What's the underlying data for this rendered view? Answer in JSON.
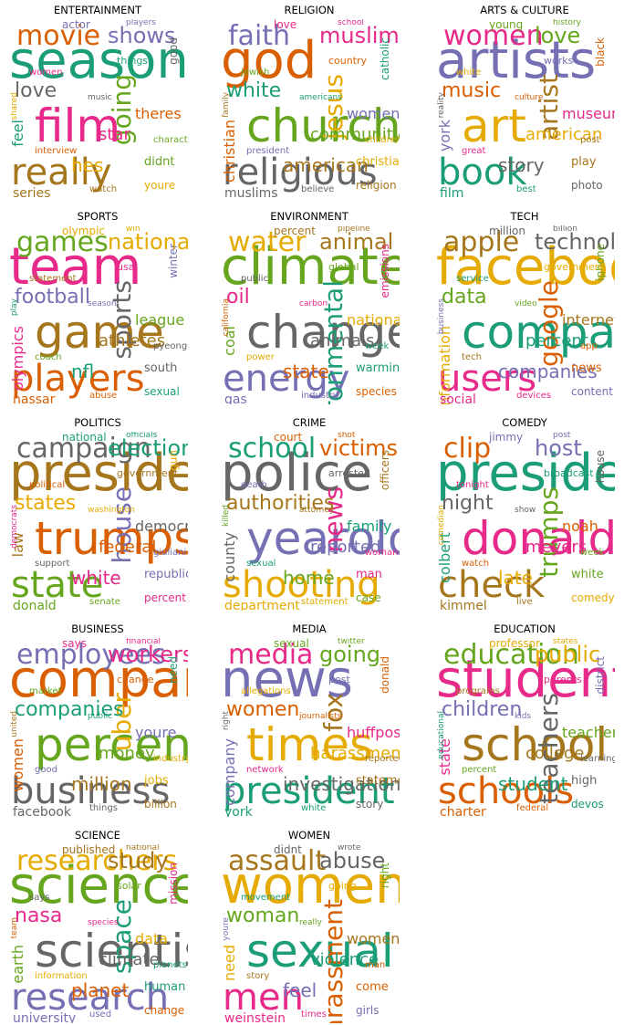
{
  "palette": [
    "#1b9e77",
    "#d95f02",
    "#7570b3",
    "#e7298a",
    "#66a61e",
    "#e6ab02",
    "#a6761d",
    "#666666"
  ],
  "panels": [
    {
      "title": "ENTERTAINMENT",
      "words": [
        "season",
        "film",
        "really",
        "movie",
        "going",
        "love",
        "shows",
        "hes",
        "feel",
        "star",
        "series",
        "theres",
        "didnt",
        "good",
        "actor",
        "youre",
        "things",
        "women",
        "watch",
        "interview",
        "character",
        "music",
        "players",
        "shared"
      ]
    },
    {
      "title": "RELIGION",
      "words": [
        "god",
        "church",
        "religious",
        "faith",
        "jesus",
        "white",
        "muslim",
        "american",
        "christian",
        "community",
        "muslims",
        "women",
        "christians",
        "catholic",
        "love",
        "religion",
        "country",
        "jewish",
        "believe",
        "president",
        "children",
        "americans",
        "school",
        "family"
      ]
    },
    {
      "title": "ARTS & CULTURE",
      "words": [
        "artists",
        "art",
        "book",
        "women",
        "artist",
        "music",
        "love",
        "story",
        "york",
        "american",
        "film",
        "museum",
        "play",
        "black",
        "young",
        "photo",
        "works",
        "white",
        "best",
        "great",
        "post",
        "culture",
        "history",
        "reality"
      ]
    },
    {
      "title": "SPORTS",
      "words": [
        "team",
        "game",
        "players",
        "games",
        "sports",
        "football",
        "national",
        "nfl",
        "olympics",
        "athletes",
        "nassar",
        "league",
        "south",
        "winter",
        "olympic",
        "sexual",
        "usa",
        "statement",
        "abuse",
        "coach",
        "pyeongchang",
        "season",
        "win",
        "play"
      ]
    },
    {
      "title": "ENVIRONMENT",
      "words": [
        "climate",
        "change",
        "energy",
        "water",
        "environmental",
        "oil",
        "animal",
        "state",
        "coal",
        "animals",
        "gas",
        "national",
        "warming",
        "emissions",
        "percent",
        "species",
        "global",
        "public",
        "industry",
        "power",
        "week",
        "carbon",
        "pipeline",
        "california"
      ]
    },
    {
      "title": "TECH",
      "words": [
        "facebook",
        "company",
        "users",
        "apple",
        "google",
        "data",
        "technology",
        "companies",
        "information",
        "percent",
        "social",
        "internet",
        "news",
        "iphone",
        "million",
        "content",
        "government",
        "service",
        "devices",
        "tech",
        "app",
        "video",
        "billion",
        "business"
      ]
    },
    {
      "title": "POLITICS",
      "words": [
        "president",
        "trumps",
        "state",
        "campaign",
        "house",
        "states",
        "election",
        "white",
        "law",
        "federal",
        "donald",
        "democratic",
        "republican",
        "gun",
        "national",
        "percent",
        "government",
        "political",
        "senate",
        "support",
        "giuliani",
        "washington",
        "officials",
        "democrats"
      ]
    },
    {
      "title": "CRIME",
      "words": [
        "police",
        "yearold",
        "shooting",
        "school",
        "news",
        "authorities",
        "victims",
        "home",
        "county",
        "reported",
        "department",
        "family",
        "man",
        "officers",
        "court",
        "case",
        "arrested",
        "death",
        "statement",
        "sexual",
        "woman",
        "attorney",
        "shot",
        "killed"
      ]
    },
    {
      "title": "COMEDY",
      "words": [
        "president",
        "donald",
        "check",
        "clip",
        "trumps",
        "night",
        "host",
        "late",
        "colbert",
        "meyers",
        "kimmel",
        "noah",
        "white",
        "house",
        "jimmy",
        "comedy",
        "broadcast",
        "tonight",
        "live",
        "watch",
        "week",
        "show",
        "post",
        "comedian"
      ]
    },
    {
      "title": "BUSINESS",
      "words": [
        "company",
        "percent",
        "business",
        "employees",
        "uber",
        "companies",
        "workers",
        "million",
        "women",
        "money",
        "facebook",
        "youre",
        "jobs",
        "need",
        "says",
        "billion",
        "change",
        "market",
        "things",
        "good",
        "industry",
        "public",
        "financial",
        "united"
      ]
    },
    {
      "title": "MEDIA",
      "words": [
        "news",
        "times",
        "president",
        "media",
        "fox",
        "women",
        "going",
        "investigation",
        "company",
        "harassment",
        "york",
        "huffpost",
        "statement",
        "donald",
        "sexual",
        "story",
        "post",
        "allegations",
        "white",
        "network",
        "reported",
        "journalists",
        "twitter",
        "right"
      ]
    },
    {
      "title": "EDUCATION",
      "words": [
        "students",
        "school",
        "schools",
        "education",
        "teachers",
        "children",
        "public",
        "student",
        "state",
        "college",
        "charter",
        "teacher",
        "high",
        "district",
        "professor",
        "devos",
        "parents",
        "programs",
        "federal",
        "percent",
        "learning",
        "kids",
        "states",
        "educational"
      ]
    },
    {
      "title": "SCIENCE",
      "words": [
        "science",
        "scientists",
        "research",
        "researchers",
        "space",
        "nasa",
        "study",
        "planet",
        "earth",
        "climate",
        "university",
        "data",
        "human",
        "mission",
        "published",
        "change",
        "solar",
        "says",
        "used",
        "information",
        "planets",
        "species",
        "national",
        "team"
      ]
    },
    {
      "title": "WOMEN",
      "words": [
        "women",
        "sexual",
        "men",
        "assault",
        "harassment",
        "woman",
        "abuse",
        "feel",
        "need",
        "violence",
        "weinstein",
        "womens",
        "come",
        "right",
        "didnt",
        "girls",
        "going",
        "movement",
        "times",
        "story",
        "man",
        "really",
        "wrote",
        "youre"
      ]
    }
  ]
}
